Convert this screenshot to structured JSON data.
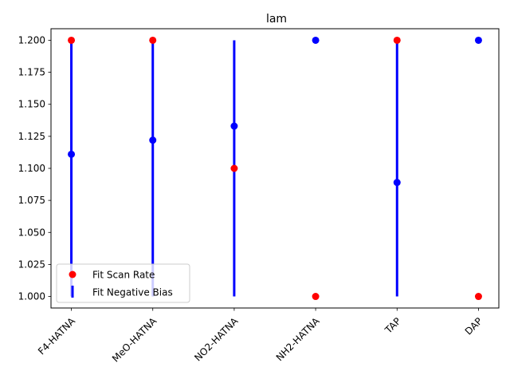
{
  "chart_data": {
    "type": "scatter",
    "title": "lam",
    "xlabel": "",
    "ylabel": "",
    "categories": [
      "F4-HATNA",
      "MeO-HATNA",
      "NO2-HATNA",
      "NH2-HATNA",
      "TAP",
      "DAP"
    ],
    "ylim": [
      0.991,
      1.209
    ],
    "yticks": [
      1.0,
      1.025,
      1.05,
      1.075,
      1.1,
      1.125,
      1.15,
      1.175,
      1.2
    ],
    "ytick_labels": [
      "1.000",
      "1.025",
      "1.050",
      "1.075",
      "1.100",
      "1.125",
      "1.150",
      "1.175",
      "1.200"
    ],
    "grid": false,
    "legend_position": "lower-left",
    "series": [
      {
        "name": "Fit Scan Rate",
        "color": "#ff0000",
        "marker": "circle",
        "values": [
          1.2,
          1.2,
          1.1,
          1.0,
          1.2,
          1.0
        ]
      },
      {
        "name": "Fit Negative Bias",
        "color": "#0000ff",
        "marker": "circle",
        "values": [
          1.111,
          1.122,
          1.133,
          1.2,
          1.089,
          1.2
        ],
        "error_low": [
          1.0,
          1.0,
          1.0,
          null,
          1.0,
          null
        ],
        "error_high": [
          1.2,
          1.2,
          1.2,
          null,
          1.2,
          null
        ]
      }
    ]
  }
}
